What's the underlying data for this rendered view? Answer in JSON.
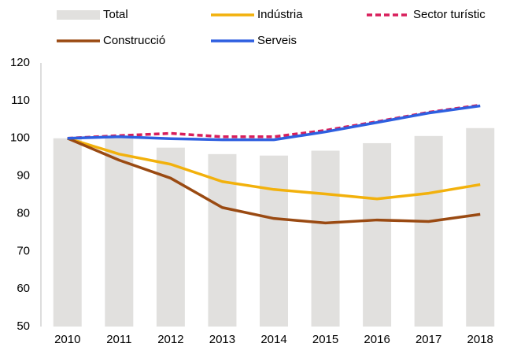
{
  "chart_data": {
    "type": "combo",
    "categories": [
      "2010",
      "2011",
      "2012",
      "2013",
      "2014",
      "2015",
      "2016",
      "2017",
      "2018"
    ],
    "series": [
      {
        "name": "Total",
        "type": "bar",
        "color": "#e1e0de",
        "values": [
          100,
          100.5,
          97.5,
          95.8,
          95.4,
          96.7,
          98.7,
          100.6,
          102.7
        ]
      },
      {
        "name": "Indústria",
        "type": "line",
        "color": "#f2b10c",
        "values": [
          100,
          95.8,
          93.1,
          88.5,
          86.4,
          85.2,
          83.9,
          85.4,
          87.7
        ]
      },
      {
        "name": "Sector turístic",
        "type": "line",
        "dashed": true,
        "color": "#d81e5b",
        "values": [
          100,
          100.7,
          101.3,
          100.4,
          100.4,
          102.1,
          104.4,
          106.9,
          108.8
        ]
      },
      {
        "name": "Construcció",
        "type": "line",
        "color": "#9a4a12",
        "values": [
          100,
          94.2,
          89.4,
          81.6,
          78.7,
          77.5,
          78.3,
          77.9,
          79.8
        ]
      },
      {
        "name": "Serveis",
        "type": "line",
        "color": "#2e5fe0",
        "values": [
          100,
          100.4,
          99.9,
          99.6,
          99.6,
          101.7,
          104.2,
          106.7,
          108.6
        ]
      }
    ],
    "ylim": [
      50,
      120
    ],
    "yticks": [
      50,
      60,
      70,
      80,
      90,
      100,
      110,
      120
    ],
    "grid": false
  }
}
